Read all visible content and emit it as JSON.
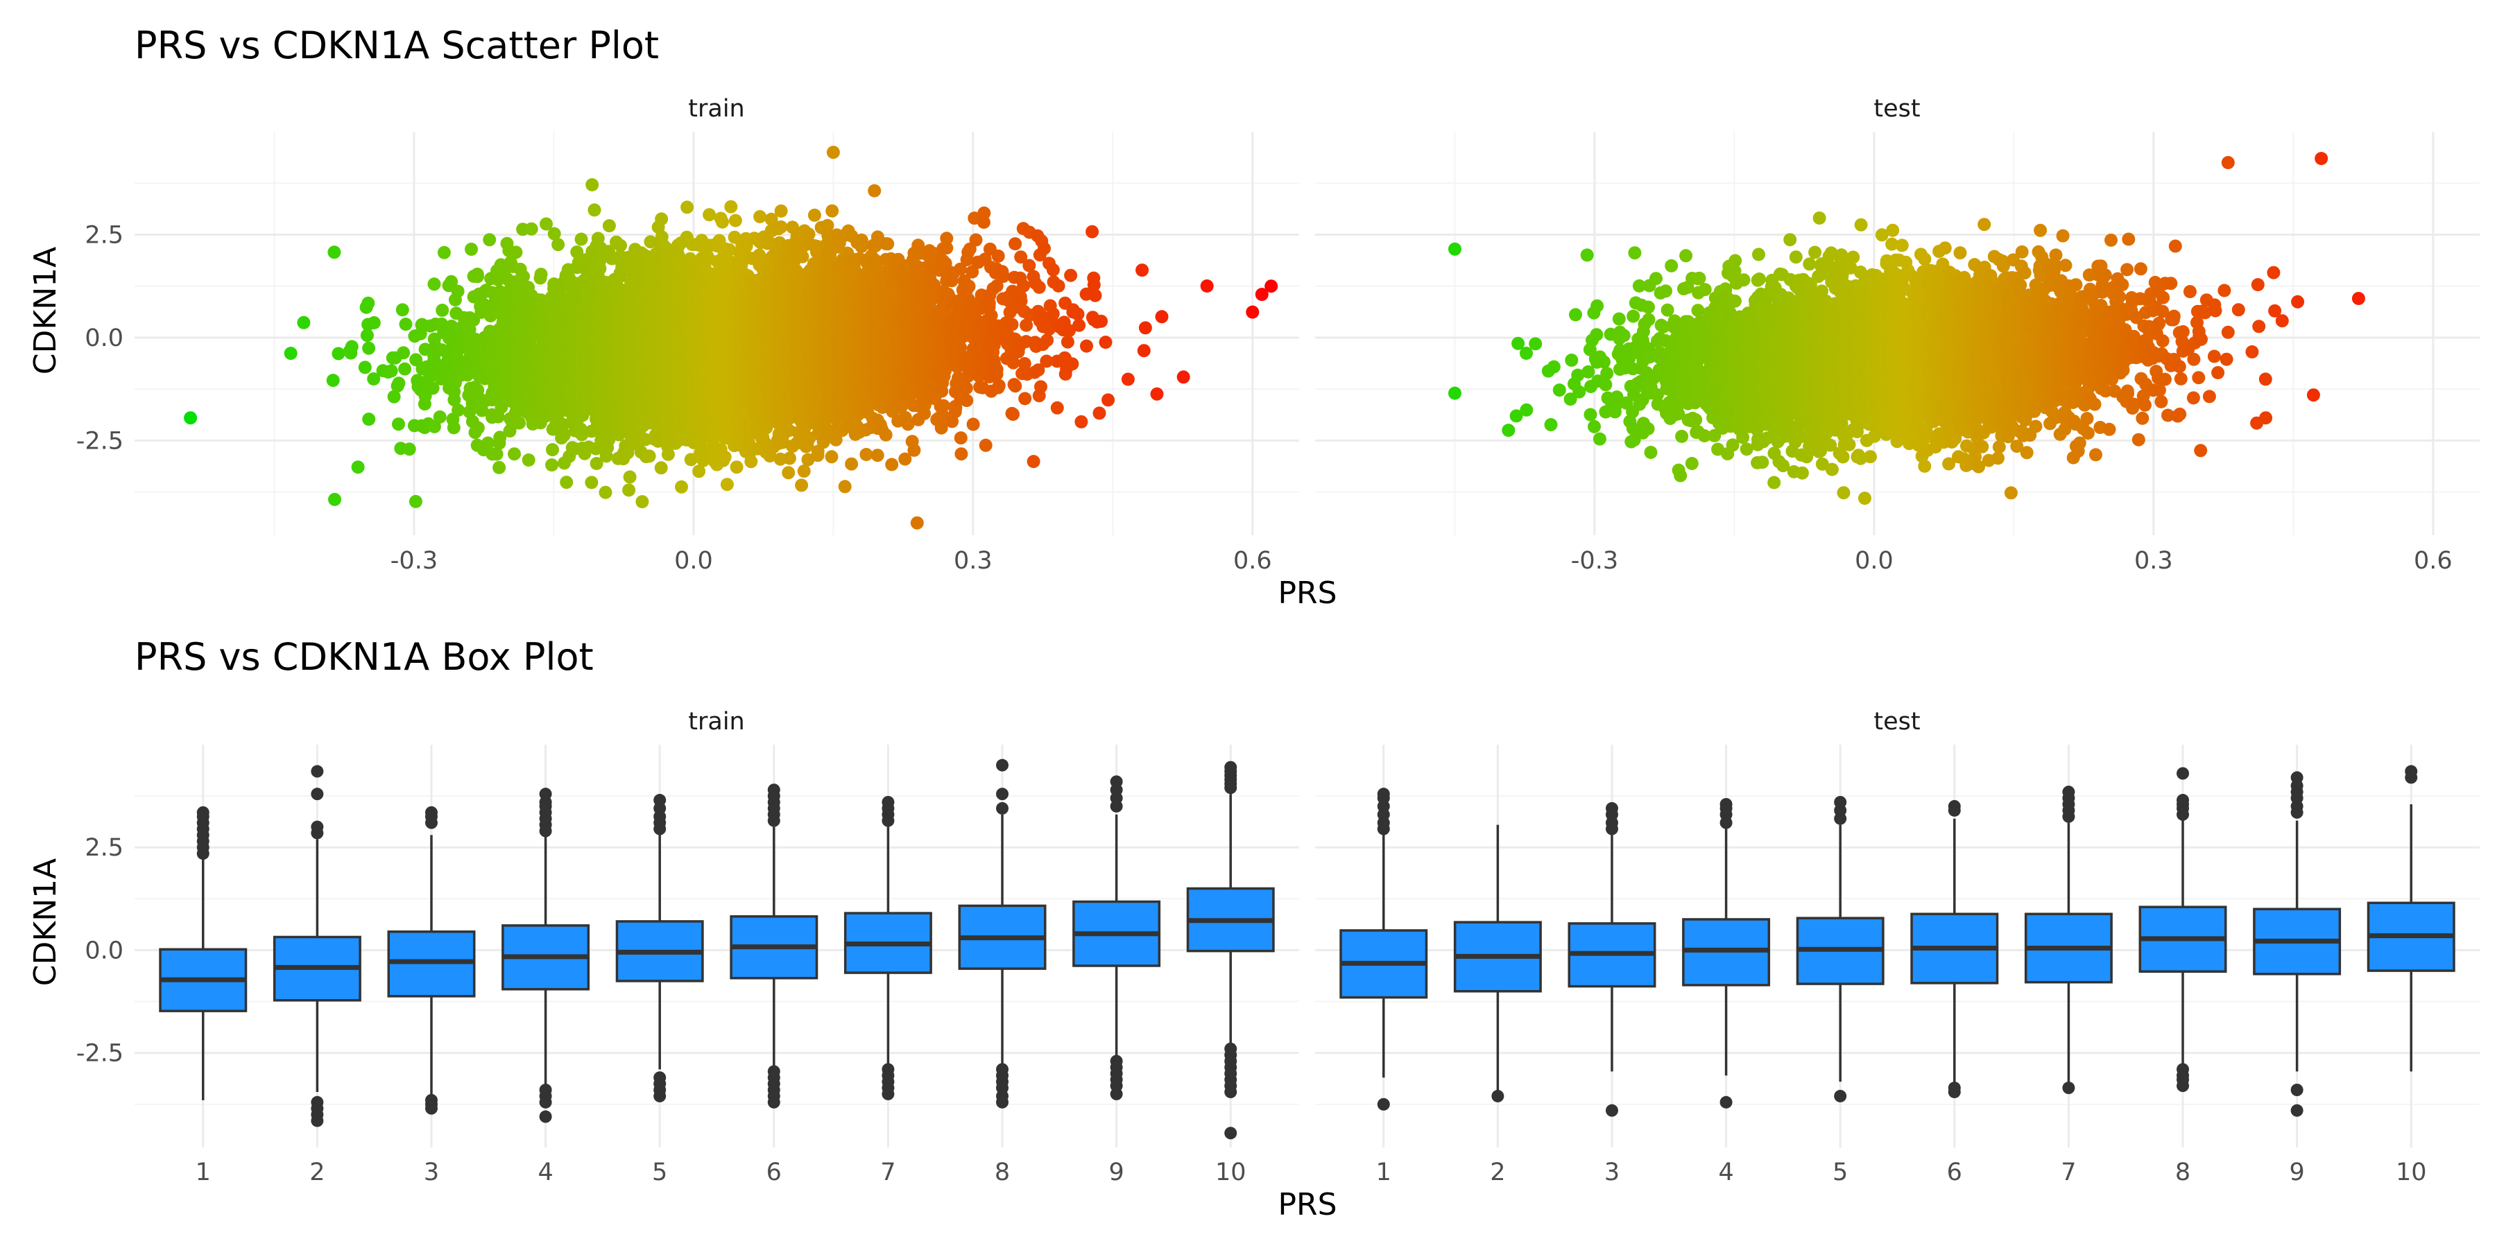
{
  "chart_data": [
    {
      "type": "scatter",
      "title": "PRS vs CDKN1A Scatter Plot",
      "xlabel": "PRS",
      "ylabel": "CDKN1A",
      "facets": [
        "train",
        "test"
      ],
      "xlim": [
        -0.6,
        0.65
      ],
      "ylim": [
        -4.8,
        5.0
      ],
      "x_ticks": [
        -0.3,
        0.0,
        0.3,
        0.6
      ],
      "y_ticks": [
        -2.5,
        0.0,
        2.5
      ],
      "grid": true,
      "legend": "none",
      "color_scale": {
        "low": "#00e000",
        "mid": "#c8b400",
        "high": "#ff0000",
        "mapped_to": "PRS"
      },
      "point_clouds": [
        {
          "facet": "train",
          "x_mean": 0.04,
          "x_sd": 0.135,
          "y_mean": -0.15,
          "y_sd": 1.05,
          "slope": 2.6,
          "n": 7000
        },
        {
          "facet": "test",
          "x_mean": 0.02,
          "x_sd": 0.125,
          "y_mean": -0.45,
          "y_sd": 0.95,
          "slope": 1.6,
          "n": 5000
        }
      ],
      "notable_points": [
        {
          "facet": "train",
          "x": -0.54,
          "y": -1.95
        },
        {
          "facet": "train",
          "x": 0.61,
          "y": 1.05
        },
        {
          "facet": "train",
          "x": 0.62,
          "y": 1.25
        },
        {
          "facet": "train",
          "x": 0.6,
          "y": 0.62
        },
        {
          "facet": "train",
          "x": 0.24,
          "y": -4.5
        },
        {
          "facet": "train",
          "x": 0.15,
          "y": 4.5
        },
        {
          "facet": "test",
          "x": -0.45,
          "y": 2.15
        },
        {
          "facet": "test",
          "x": -0.45,
          "y": -1.35
        },
        {
          "facet": "test",
          "x": 0.48,
          "y": 4.35
        },
        {
          "facet": "test",
          "x": 0.52,
          "y": 0.95
        },
        {
          "facet": "test",
          "x": 0.38,
          "y": 4.25
        },
        {
          "facet": "test",
          "x": -0.01,
          "y": -3.9
        }
      ]
    },
    {
      "type": "box",
      "title": "PRS vs CDKN1A Box Plot",
      "xlabel": "PRS",
      "ylabel": "CDKN1A",
      "facets": [
        "train",
        "test"
      ],
      "categories": [
        "1",
        "2",
        "3",
        "4",
        "5",
        "6",
        "7",
        "8",
        "9",
        "10"
      ],
      "ylim": [
        -4.8,
        5.0
      ],
      "y_ticks": [
        -2.5,
        0.0,
        2.5
      ],
      "fill": "#1e90ff",
      "grid": true,
      "series": [
        {
          "facet": "train",
          "boxes": [
            {
              "q1": -1.48,
              "median": -0.72,
              "q3": 0.02,
              "whisker_low": -3.65,
              "whisker_high": 2.25,
              "outliers_low": [],
              "outliers_high": [
                2.35,
                2.5,
                2.65,
                2.8,
                2.95,
                3.1,
                3.25,
                3.35
              ]
            },
            {
              "q1": -1.22,
              "median": -0.42,
              "q3": 0.32,
              "whisker_low": -3.45,
              "whisker_high": 2.7,
              "outliers_low": [
                -3.7,
                -3.85,
                -4.0,
                -4.15
              ],
              "outliers_high": [
                2.85,
                3.0,
                3.8,
                4.35
              ]
            },
            {
              "q1": -1.12,
              "median": -0.28,
              "q3": 0.45,
              "whisker_low": -3.6,
              "whisker_high": 2.8,
              "outliers_low": [
                -3.65,
                -3.75,
                -3.85
              ],
              "outliers_high": [
                3.1,
                3.25,
                3.35
              ]
            },
            {
              "q1": -0.95,
              "median": -0.16,
              "q3": 0.6,
              "whisker_low": -3.3,
              "whisker_high": 2.8,
              "outliers_low": [
                -3.4,
                -3.55,
                -3.7,
                -4.05
              ],
              "outliers_high": [
                2.9,
                3.05,
                3.2,
                3.35,
                3.5,
                3.6,
                3.8
              ]
            },
            {
              "q1": -0.75,
              "median": -0.05,
              "q3": 0.7,
              "whisker_low": -2.9,
              "whisker_high": 2.85,
              "outliers_low": [
                -3.1,
                -3.25,
                -3.4,
                -3.55
              ],
              "outliers_high": [
                2.95,
                3.1,
                3.25,
                3.45,
                3.65
              ]
            },
            {
              "q1": -0.68,
              "median": 0.08,
              "q3": 0.82,
              "whisker_low": -2.85,
              "whisker_high": 3.0,
              "outliers_low": [
                -2.95,
                -3.1,
                -3.25,
                -3.4,
                -3.55,
                -3.7
              ],
              "outliers_high": [
                3.15,
                3.3,
                3.45,
                3.6,
                3.75,
                3.9
              ]
            },
            {
              "q1": -0.55,
              "median": 0.15,
              "q3": 0.9,
              "whisker_low": -2.75,
              "whisker_high": 3.0,
              "outliers_low": [
                -2.9,
                -3.05,
                -3.2,
                -3.35,
                -3.5
              ],
              "outliers_high": [
                3.15,
                3.3,
                3.45,
                3.6
              ]
            },
            {
              "q1": -0.45,
              "median": 0.3,
              "q3": 1.08,
              "whisker_low": -2.75,
              "whisker_high": 3.3,
              "outliers_low": [
                -2.9,
                -3.05,
                -3.2,
                -3.35,
                -3.55,
                -3.7
              ],
              "outliers_high": [
                3.45,
                3.8,
                4.5
              ]
            },
            {
              "q1": -0.38,
              "median": 0.4,
              "q3": 1.18,
              "whisker_low": -2.6,
              "whisker_high": 3.3,
              "outliers_low": [
                -2.7,
                -2.85,
                -3.0,
                -3.15,
                -3.3,
                -3.5
              ],
              "outliers_high": [
                3.5,
                3.7,
                3.9,
                4.1
              ]
            },
            {
              "q1": -0.02,
              "median": 0.72,
              "q3": 1.5,
              "whisker_low": -2.3,
              "whisker_high": 3.8,
              "outliers_low": [
                -2.4,
                -2.55,
                -2.7,
                -2.85,
                -3.0,
                -3.15,
                -3.3,
                -3.45,
                -4.45
              ],
              "outliers_high": [
                3.95,
                4.05,
                4.15,
                4.25,
                4.35,
                4.45
              ]
            }
          ]
        },
        {
          "facet": "test",
          "boxes": [
            {
              "q1": -1.15,
              "median": -0.32,
              "q3": 0.48,
              "whisker_low": -3.1,
              "whisker_high": 2.85,
              "outliers_low": [
                -3.75
              ],
              "outliers_high": [
                2.95,
                3.1,
                3.3,
                3.5,
                3.7,
                3.8
              ]
            },
            {
              "q1": -1.0,
              "median": -0.15,
              "q3": 0.68,
              "whisker_low": -3.5,
              "whisker_high": 3.05,
              "outliers_low": [
                -3.55
              ],
              "outliers_high": []
            },
            {
              "q1": -0.88,
              "median": -0.08,
              "q3": 0.65,
              "whisker_low": -2.95,
              "whisker_high": 2.8,
              "outliers_low": [
                -3.9
              ],
              "outliers_high": [
                2.95,
                3.1,
                3.3,
                3.45
              ]
            },
            {
              "q1": -0.85,
              "median": 0.0,
              "q3": 0.75,
              "whisker_low": -3.05,
              "whisker_high": 2.95,
              "outliers_low": [
                -3.7
              ],
              "outliers_high": [
                3.1,
                3.3,
                3.45,
                3.55
              ]
            },
            {
              "q1": -0.82,
              "median": 0.02,
              "q3": 0.78,
              "whisker_low": -3.2,
              "whisker_high": 3.05,
              "outliers_low": [
                -3.55
              ],
              "outliers_high": [
                3.2,
                3.4,
                3.6
              ]
            },
            {
              "q1": -0.8,
              "median": 0.05,
              "q3": 0.88,
              "whisker_low": -3.25,
              "whisker_high": 3.2,
              "outliers_low": [
                -3.35,
                -3.45
              ],
              "outliers_high": [
                3.4,
                3.5
              ]
            },
            {
              "q1": -0.78,
              "median": 0.05,
              "q3": 0.88,
              "whisker_low": -3.2,
              "whisker_high": 3.1,
              "outliers_low": [
                -3.35
              ],
              "outliers_high": [
                3.25,
                3.4,
                3.55,
                3.7,
                3.85
              ]
            },
            {
              "q1": -0.52,
              "median": 0.28,
              "q3": 1.05,
              "whisker_low": -2.75,
              "whisker_high": 3.2,
              "outliers_low": [
                -2.9,
                -3.05,
                -3.15,
                -3.3
              ],
              "outliers_high": [
                3.3,
                3.45,
                3.55,
                3.65,
                4.3
              ]
            },
            {
              "q1": -0.58,
              "median": 0.22,
              "q3": 1.0,
              "whisker_low": -2.95,
              "whisker_high": 3.15,
              "outliers_low": [
                -3.4,
                -3.9
              ],
              "outliers_high": [
                3.35,
                3.5,
                3.7,
                3.85,
                4.0,
                4.2
              ]
            },
            {
              "q1": -0.5,
              "median": 0.35,
              "q3": 1.15,
              "whisker_low": -2.95,
              "whisker_high": 3.55,
              "outliers_low": [],
              "outliers_high": [
                4.2,
                4.35
              ]
            }
          ]
        }
      ]
    }
  ]
}
